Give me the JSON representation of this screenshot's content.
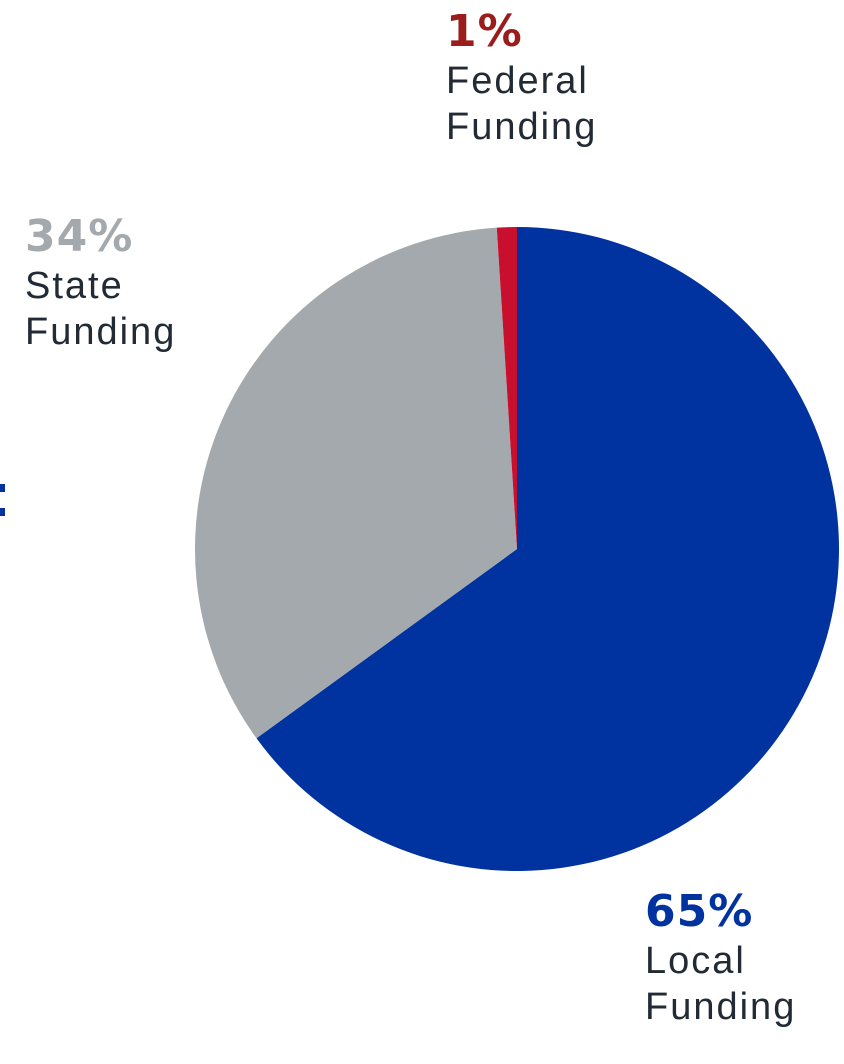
{
  "chart_data": {
    "type": "pie",
    "title": "",
    "slices": [
      {
        "label": "Local Funding",
        "label_lines": [
          "Local",
          "Funding"
        ],
        "value": 65,
        "value_label": "65%",
        "color": "#0033a0"
      },
      {
        "label": "State Funding",
        "label_lines": [
          "State",
          "Funding"
        ],
        "value": 34,
        "value_label": "34%",
        "color": "#a4a9ad"
      },
      {
        "label": "Federal Funding",
        "label_lines": [
          "Federal",
          "Funding"
        ],
        "value": 1,
        "value_label": "1%",
        "color": "#c8102e"
      }
    ],
    "start": "12 o'clock",
    "direction": "clockwise",
    "legend": "none"
  }
}
